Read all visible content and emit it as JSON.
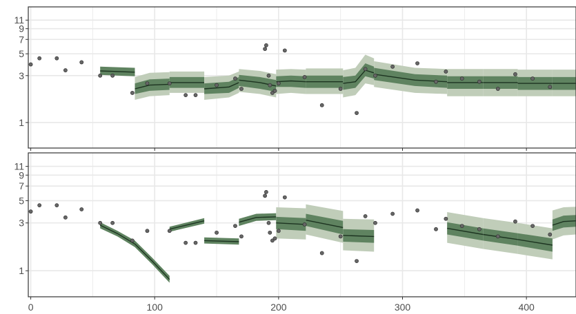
{
  "chart_data": [
    {
      "type": "line",
      "panel": "top",
      "title": "",
      "xlabel": "",
      "ylabel": "",
      "y_scale": "log",
      "xlim": [
        -2,
        440
      ],
      "ylim": [
        0.55,
        15
      ],
      "x_ticks": [
        0,
        100,
        200,
        300,
        400
      ],
      "x_tick_labels": [
        "0",
        "100",
        "200",
        "300",
        "400"
      ],
      "y_ticks": [
        1,
        3,
        5,
        7,
        9,
        11
      ],
      "y_tick_labels": [
        "1",
        "3",
        "5",
        "7",
        "9",
        "11"
      ],
      "grid": true,
      "observations": {
        "x": [
          0,
          7,
          21,
          28,
          41,
          56,
          66,
          82,
          94,
          112,
          125,
          133,
          150,
          165,
          170,
          189,
          190,
          192,
          193,
          195,
          197,
          200,
          205,
          221,
          235,
          250,
          263,
          270,
          278,
          292,
          312,
          327,
          335,
          348,
          362,
          377,
          391,
          405,
          419
        ],
        "y": [
          3.9,
          4.5,
          4.5,
          3.4,
          4.1,
          3.0,
          3.0,
          2.0,
          2.5,
          2.5,
          1.9,
          1.9,
          2.4,
          2.8,
          2.2,
          5.6,
          6.1,
          3.0,
          2.4,
          2.0,
          2.1,
          2.5,
          5.4,
          2.9,
          1.5,
          2.2,
          1.25,
          3.5,
          3.0,
          3.7,
          4.0,
          2.6,
          3.3,
          2.8,
          2.6,
          2.2,
          3.1,
          2.8,
          2.3
        ]
      },
      "segments": [
        {
          "x": [
            56,
            84
          ],
          "median": [
            3.35,
            3.25
          ],
          "inner": [
            [
              3.05,
              2.95
            ],
            [
              3.7,
              3.6
            ]
          ]
        },
        {
          "x": [
            84,
            96,
            112
          ],
          "median": [
            2.2,
            2.4,
            2.45
          ],
          "inner": [
            [
              1.95,
              2.1,
              2.15
            ],
            [
              2.5,
              2.75,
              2.8
            ]
          ],
          "outer": [
            [
              1.7,
              1.85,
              1.9
            ],
            [
              2.9,
              3.2,
              3.25
            ]
          ]
        },
        {
          "x": [
            112,
            140
          ],
          "median": [
            2.55,
            2.55
          ],
          "inner": [
            [
              2.25,
              2.25
            ],
            [
              2.9,
              2.9
            ]
          ],
          "outer": [
            [
              2.0,
              2.0
            ],
            [
              3.3,
              3.3
            ]
          ]
        },
        {
          "x": [
            140,
            160,
            168
          ],
          "median": [
            2.2,
            2.3,
            2.55
          ],
          "inner": [
            [
              1.95,
              2.0,
              2.25
            ],
            [
              2.5,
              2.6,
              2.9
            ]
          ],
          "outer": [
            [
              1.7,
              1.8,
              2.0
            ],
            [
              2.9,
              3.0,
              3.3
            ]
          ]
        },
        {
          "x": [
            168,
            185,
            198
          ],
          "median": [
            2.7,
            2.55,
            2.35
          ],
          "inner": [
            [
              2.35,
              2.2,
              2.05
            ],
            [
              3.05,
              2.9,
              2.7
            ]
          ],
          "outer": [
            [
              2.05,
              1.95,
              1.8
            ],
            [
              3.5,
              3.35,
              3.1
            ]
          ]
        },
        {
          "x": [
            198,
            210,
            222
          ],
          "median": [
            2.6,
            2.65,
            2.6
          ],
          "inner": [
            [
              2.3,
              2.3,
              2.25
            ],
            [
              2.95,
              3.0,
              2.95
            ]
          ],
          "outer": [
            [
              1.95,
              2.0,
              1.95
            ],
            [
              3.45,
              3.5,
              3.45
            ]
          ]
        },
        {
          "x": [
            222,
            252
          ],
          "median": [
            2.6,
            2.6
          ],
          "inner": [
            [
              2.25,
              2.25
            ],
            [
              3.0,
              3.0
            ]
          ],
          "outer": [
            [
              1.95,
              1.95
            ],
            [
              3.55,
              3.55
            ]
          ]
        },
        {
          "x": [
            252,
            262,
            270,
            277
          ],
          "median": [
            2.5,
            2.6,
            3.4,
            3.2
          ],
          "inner": [
            [
              2.15,
              2.25,
              2.95,
              2.8
            ],
            [
              2.9,
              3.0,
              4.0,
              3.7
            ]
          ],
          "outer": [
            [
              1.8,
              1.9,
              2.5,
              2.4
            ],
            [
              3.4,
              3.6,
              4.9,
              4.5
            ]
          ]
        },
        {
          "x": [
            277,
            310,
            336
          ],
          "median": [
            3.1,
            2.7,
            2.6
          ],
          "inner": [
            [
              2.7,
              2.35,
              2.25
            ],
            [
              3.6,
              3.1,
              3.0
            ]
          ],
          "outer": [
            [
              2.3,
              2.0,
              1.95
            ],
            [
              4.2,
              3.6,
              3.5
            ]
          ]
        },
        {
          "x": [
            336,
            365
          ],
          "median": [
            2.55,
            2.55
          ],
          "inner": [
            [
              2.2,
              2.2
            ],
            [
              2.95,
              2.95
            ]
          ],
          "outer": [
            [
              1.85,
              1.85
            ],
            [
              3.5,
              3.5
            ]
          ]
        },
        {
          "x": [
            365,
            393
          ],
          "median": [
            2.55,
            2.55
          ],
          "inner": [
            [
              2.2,
              2.2
            ],
            [
              2.95,
              2.95
            ]
          ],
          "outer": [
            [
              1.85,
              1.85
            ],
            [
              3.5,
              3.5
            ]
          ]
        },
        {
          "x": [
            393,
            421
          ],
          "median": [
            2.5,
            2.5
          ],
          "inner": [
            [
              2.15,
              2.15
            ],
            [
              2.9,
              2.9
            ]
          ],
          "outer": [
            [
              1.85,
              1.85
            ],
            [
              3.45,
              3.45
            ]
          ]
        },
        {
          "x": [
            421,
            440
          ],
          "median": [
            2.5,
            2.5
          ],
          "inner": [
            [
              2.15,
              2.15
            ],
            [
              2.9,
              2.9
            ]
          ],
          "outer": [
            [
              1.85,
              1.85
            ],
            [
              3.45,
              3.45
            ]
          ]
        }
      ]
    },
    {
      "type": "line",
      "panel": "bottom",
      "title": "",
      "xlabel": "",
      "ylabel": "",
      "y_scale": "log",
      "xlim": [
        -2,
        440
      ],
      "ylim": [
        0.55,
        15
      ],
      "x_ticks": [
        0,
        100,
        200,
        300,
        400
      ],
      "x_tick_labels": [
        "0",
        "100",
        "200",
        "300",
        "400"
      ],
      "y_ticks": [
        1,
        3,
        5,
        7,
        9,
        11
      ],
      "y_tick_labels": [
        "1",
        "3",
        "5",
        "7",
        "9",
        "11"
      ],
      "grid": true,
      "observations": {
        "x": [
          0,
          7,
          21,
          28,
          41,
          56,
          66,
          82,
          94,
          112,
          125,
          133,
          150,
          165,
          170,
          189,
          190,
          192,
          193,
          195,
          197,
          200,
          205,
          221,
          235,
          250,
          263,
          270,
          278,
          292,
          312,
          327,
          335,
          348,
          362,
          377,
          391,
          405,
          419
        ],
        "y": [
          3.9,
          4.5,
          4.5,
          3.4,
          4.1,
          3.0,
          3.0,
          2.0,
          2.5,
          2.5,
          1.9,
          1.9,
          2.4,
          2.8,
          2.2,
          5.6,
          6.1,
          3.0,
          2.4,
          2.0,
          2.1,
          2.5,
          5.4,
          2.9,
          1.5,
          2.2,
          1.25,
          3.5,
          3.0,
          3.7,
          4.0,
          2.6,
          3.3,
          2.8,
          2.6,
          2.2,
          3.1,
          2.8,
          2.3
        ]
      },
      "segments": [
        {
          "x": [
            56,
            70,
            84
          ],
          "median": [
            2.85,
            2.35,
            1.85
          ],
          "inner": [
            [
              2.65,
              2.2,
              1.72
            ],
            [
              3.05,
              2.5,
              2.0
            ]
          ]
        },
        {
          "x": [
            84,
            98,
            112
          ],
          "median": [
            1.85,
            1.25,
            0.82
          ],
          "inner": [
            [
              1.72,
              1.16,
              0.76
            ],
            [
              2.0,
              1.35,
              0.89
            ]
          ]
        },
        {
          "x": [
            112,
            140
          ],
          "median": [
            2.6,
            3.15
          ],
          "inner": [
            [
              2.45,
              2.95
            ],
            [
              2.75,
              3.35
            ]
          ]
        },
        {
          "x": [
            140,
            168
          ],
          "median": [
            2.0,
            1.95
          ],
          "inner": [
            [
              1.87,
              1.82
            ],
            [
              2.15,
              2.1
            ]
          ]
        },
        {
          "x": [
            168,
            182,
            198
          ],
          "median": [
            3.05,
            3.4,
            3.45
          ],
          "inner": [
            [
              2.8,
              3.15,
              3.2
            ],
            [
              3.3,
              3.7,
              3.75
            ]
          ]
        },
        {
          "x": [
            198,
            222
          ],
          "median": [
            3.0,
            2.9
          ],
          "inner": [
            [
              2.6,
              2.5
            ],
            [
              3.45,
              3.35
            ]
          ],
          "outer": [
            [
              2.1,
              2.05
            ],
            [
              4.3,
              4.2
            ]
          ]
        },
        {
          "x": [
            222,
            252
          ],
          "median": [
            3.2,
            2.7
          ],
          "inner": [
            [
              2.8,
              2.3
            ],
            [
              3.7,
              3.15
            ]
          ],
          "outer": [
            [
              2.3,
              1.9
            ],
            [
              4.6,
              3.95
            ]
          ]
        },
        {
          "x": [
            252,
            277
          ],
          "median": [
            2.25,
            2.2
          ],
          "inner": [
            [
              1.95,
              1.9
            ],
            [
              2.6,
              2.55
            ]
          ],
          "outer": [
            [
              1.6,
              1.55
            ],
            [
              3.3,
              3.25
            ]
          ]
        },
        {
          "x": [
            336,
            365
          ],
          "median": [
            2.65,
            2.3
          ],
          "inner": [
            [
              2.3,
              2.0
            ],
            [
              3.05,
              2.65
            ]
          ],
          "outer": [
            [
              1.9,
              1.65
            ],
            [
              3.85,
              3.35
            ]
          ]
        },
        {
          "x": [
            365,
            393
          ],
          "median": [
            2.3,
            2.05
          ],
          "inner": [
            [
              2.0,
              1.78
            ],
            [
              2.65,
              2.37
            ]
          ],
          "outer": [
            [
              1.65,
              1.47
            ],
            [
              3.35,
              3.0
            ]
          ]
        },
        {
          "x": [
            393,
            421
          ],
          "median": [
            2.05,
            1.8
          ],
          "inner": [
            [
              1.78,
              1.55
            ],
            [
              2.37,
              2.1
            ]
          ],
          "outer": [
            [
              1.47,
              1.3
            ],
            [
              3.0,
              2.65
            ]
          ]
        },
        {
          "x": [
            421,
            430,
            440
          ],
          "median": [
            2.85,
            3.1,
            3.15
          ],
          "inner": [
            [
              2.5,
              2.7,
              2.75
            ],
            [
              3.25,
              3.55,
              3.6
            ]
          ],
          "outer": [
            [
              2.05,
              2.25,
              2.3
            ],
            [
              4.0,
              4.3,
              4.35
            ]
          ]
        }
      ]
    }
  ]
}
